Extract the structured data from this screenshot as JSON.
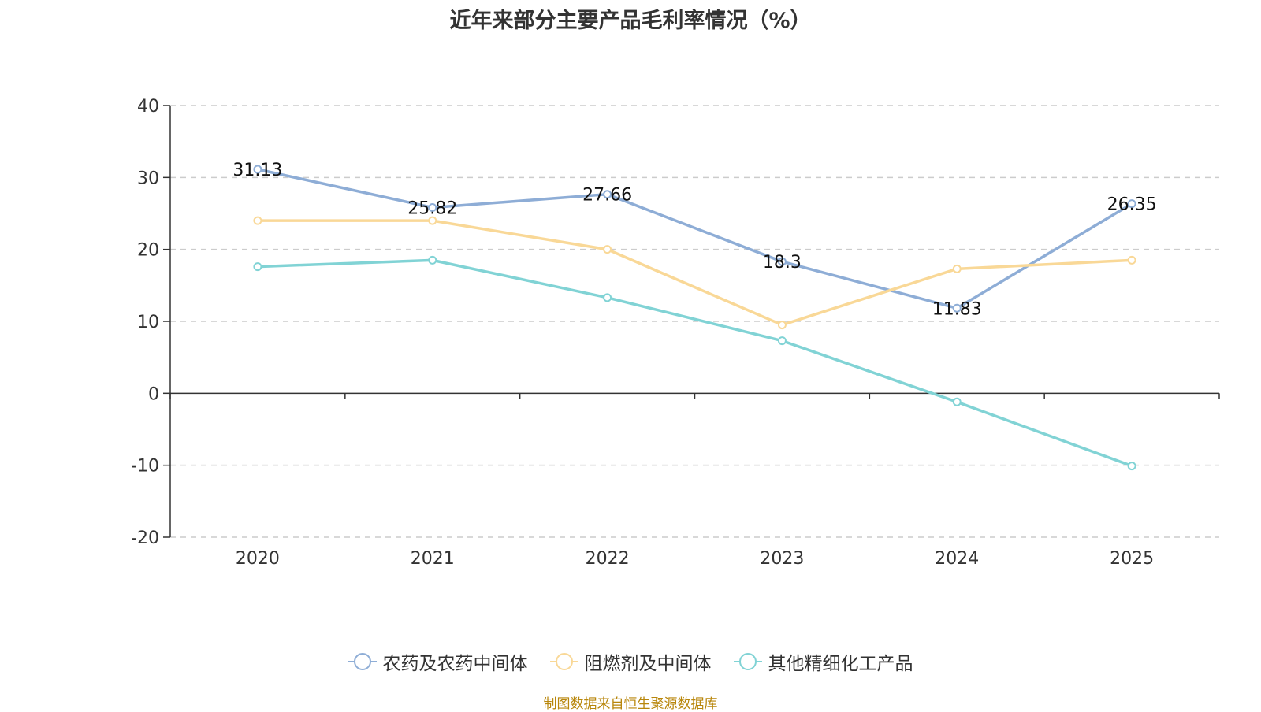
{
  "chart_data": {
    "type": "line",
    "title": "近年来部分主要产品毛利率情况（%）",
    "categories": [
      "2020",
      "2021",
      "2022",
      "2023",
      "2024",
      "2025"
    ],
    "ylim": [
      -20,
      40
    ],
    "yticks": [
      -20,
      -10,
      0,
      10,
      20,
      30,
      40
    ],
    "grid": true,
    "legend_position": "bottom",
    "series": [
      {
        "name": "农药及农药中间体",
        "color": "#8eadd6",
        "values": [
          31.13,
          25.82,
          27.66,
          18.3,
          11.83,
          26.35
        ],
        "data_labels": [
          "31.13",
          "25.82",
          "27.66",
          "18.3",
          "11.83",
          "26.35"
        ]
      },
      {
        "name": "阻燃剂及中间体",
        "color": "#f9d897",
        "values": [
          24.0,
          24.0,
          20.0,
          9.5,
          17.3,
          18.5
        ]
      },
      {
        "name": "其他精细化工产品",
        "color": "#81d3d5",
        "values": [
          17.6,
          18.5,
          13.3,
          7.3,
          -1.2,
          -10.1
        ]
      }
    ]
  },
  "source": "制图数据来自恒生聚源数据库"
}
